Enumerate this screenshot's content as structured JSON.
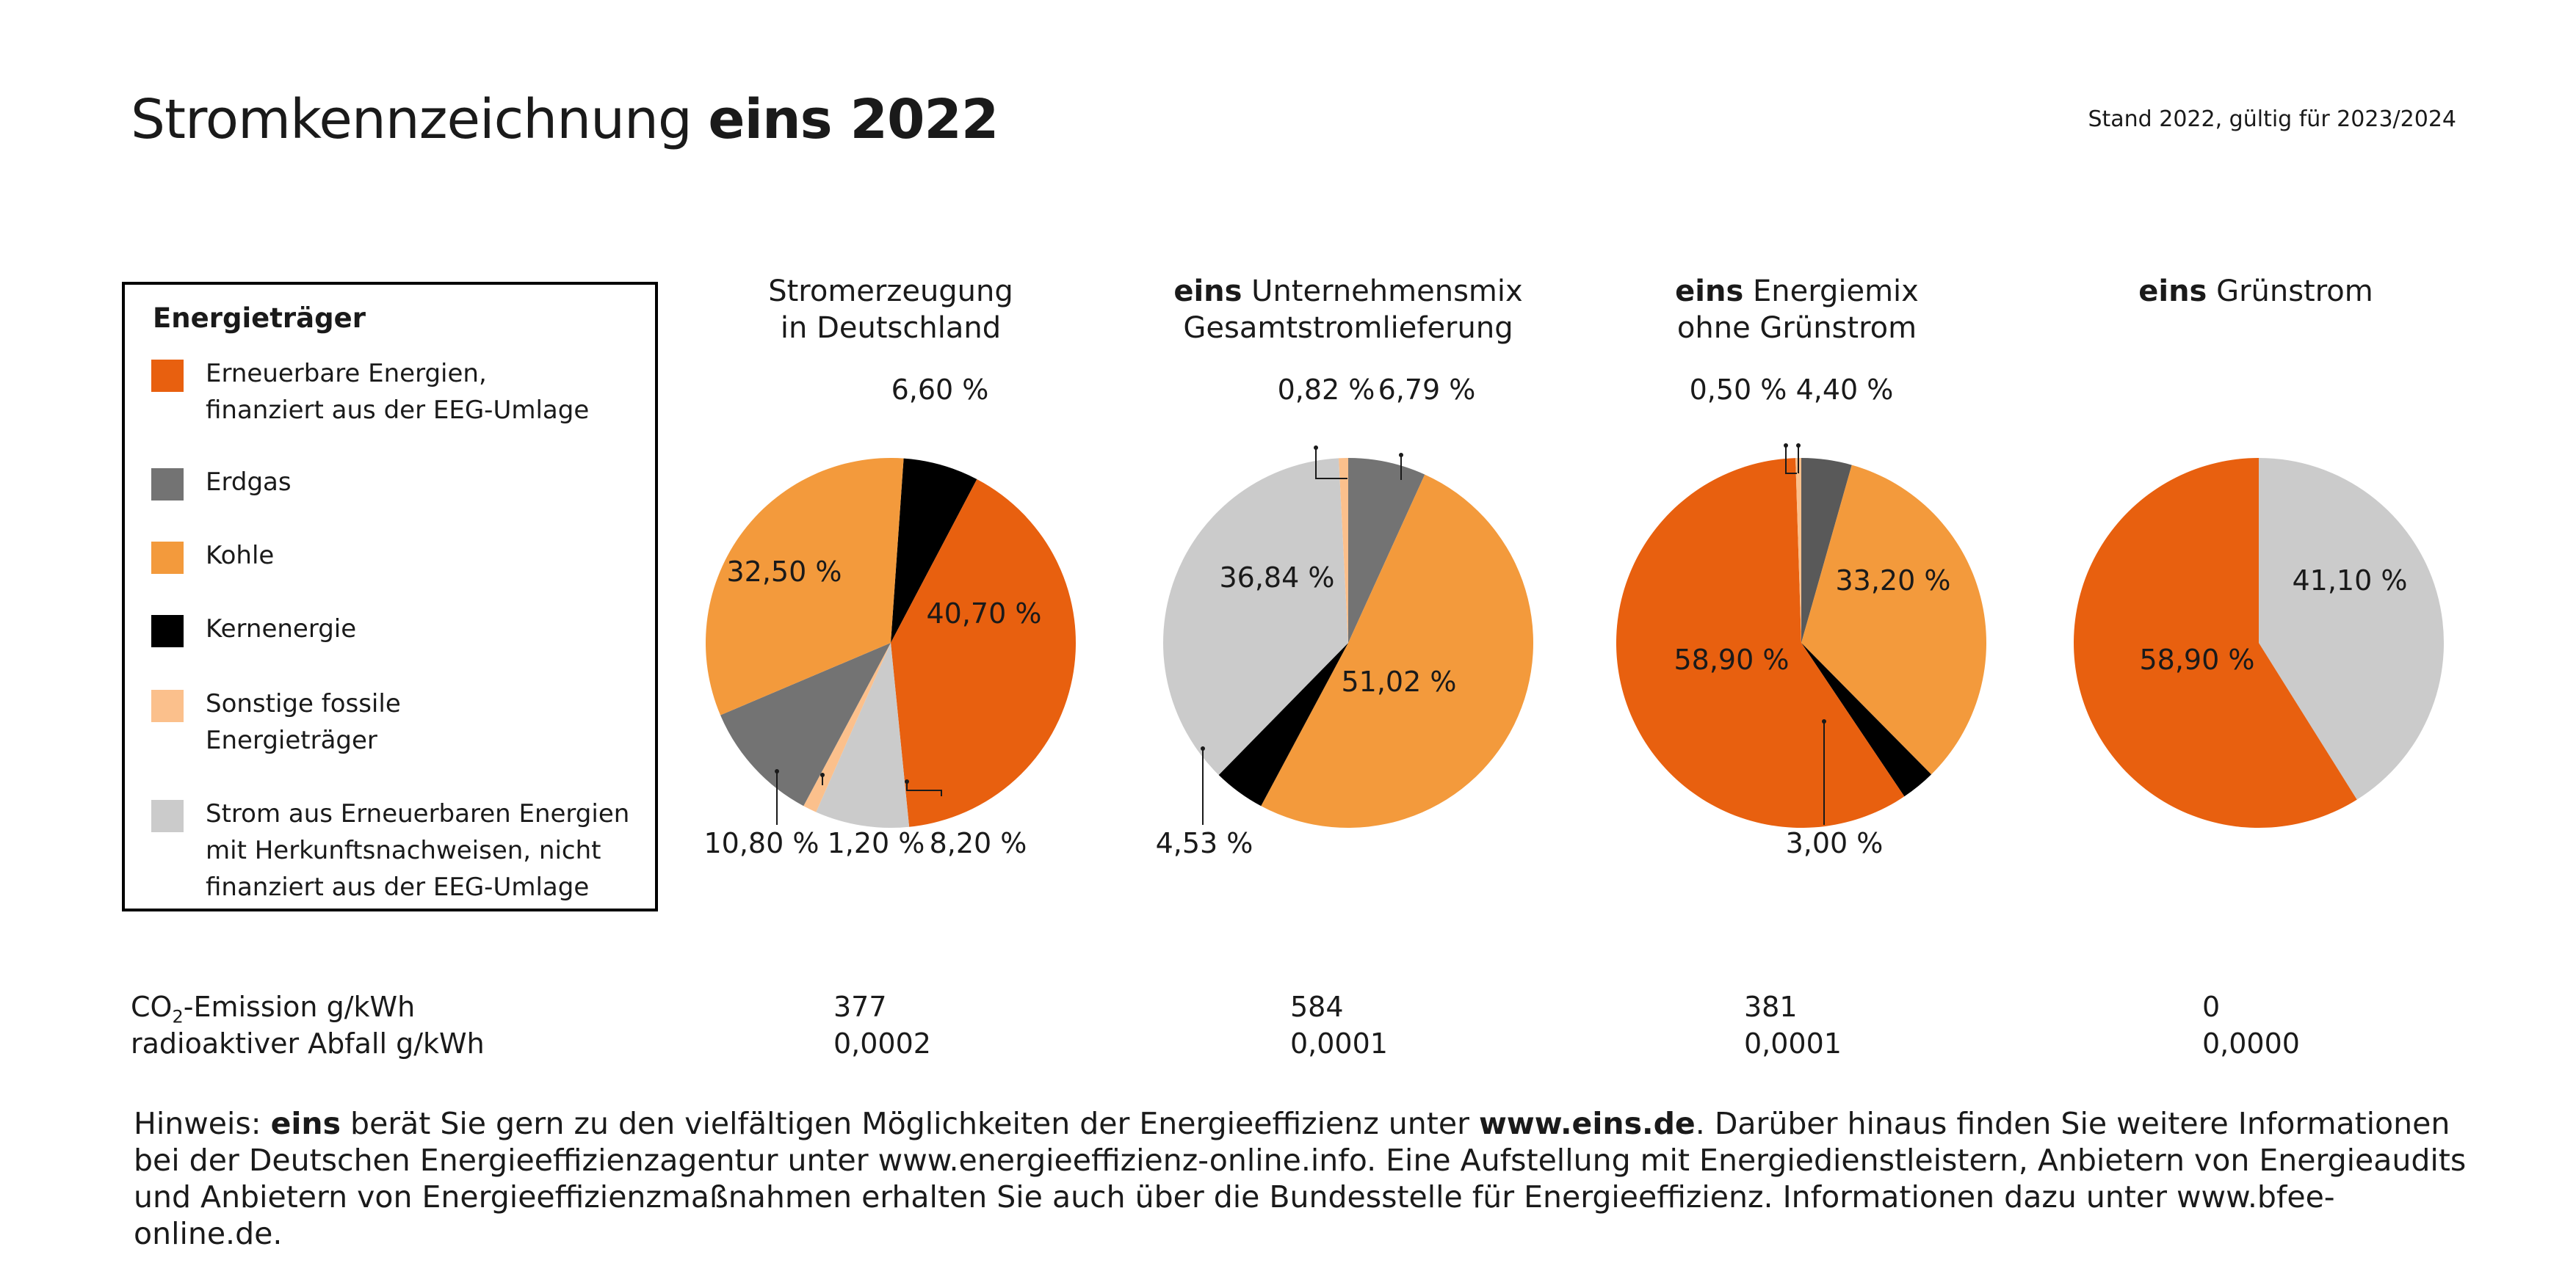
{
  "header": {
    "title_prefix": "Stromkennzeichnung ",
    "title_bold": "eins 2022",
    "stand": "Stand 2022, gültig für 2023/2024"
  },
  "legend": {
    "heading": "Energieträger",
    "items": [
      {
        "label": "Erneuerbare Energien,\nfinanziert aus der EEG-Umlage",
        "color": "#E8600F"
      },
      {
        "label": "Erdgas",
        "color": "#737373"
      },
      {
        "label": "Kohle",
        "color": "#F39A3C"
      },
      {
        "label": "Kernenergie",
        "color": "#000000"
      },
      {
        "label": "Sonstige fossile\nEnergieträger",
        "color": "#FBC08C"
      },
      {
        "label": "Strom aus Erneuerbaren Energien\nmit Herkunftsnachweisen, nicht\nfinanziert aus der EEG-Umlage",
        "color": "#CBCBCB"
      }
    ]
  },
  "pie_titles": [
    {
      "bold": "",
      "line1": "Stromerzeugung",
      "line2": "in Deutschland"
    },
    {
      "bold": "eins",
      "line1": " Unternehmensmix",
      "line2": "Gesamtstromlieferung"
    },
    {
      "bold": "eins",
      "line1": " Energiemix",
      "line2": "ohne Grünstrom"
    },
    {
      "bold": "eins",
      "line1": " Grünstrom",
      "line2": ""
    }
  ],
  "metrics": {
    "co2_label_prefix": "CO",
    "co2_label_sub": "2",
    "co2_label_suffix": "-Emission g/kWh",
    "waste_label": "radioaktiver Abfall g/kWh",
    "co2_values": [
      "377",
      "584",
      "381",
      "0"
    ],
    "waste_values": [
      "0,0002",
      "0,0001",
      "0,0001",
      "0,0000"
    ]
  },
  "note": {
    "p1": "Hinweis: ",
    "b1": "eins",
    "p2": " berät Sie gern zu den vielfältigen Möglichkeiten der Energieeffizienz unter ",
    "b2": "www.eins.de",
    "p3": ". Darüber hinaus finden Sie weitere Informationen bei der Deutschen Energieeffizienzagentur unter www.energieeffizienz-online.info. Eine Aufstellung mit Energiedienstleistern, Anbietern von Energieaudits und Anbietern von Energieeffizienzmaßnahmen erhalten Sie auch über die Bundesstelle für Energieeffizienz. Informationen dazu unter www.bfee-online.de."
  },
  "chart_data": [
    {
      "type": "pie",
      "title": "Stromerzeugung in Deutschland",
      "slices": [
        {
          "name": "Kernenergie",
          "value": 6.6,
          "label": "6,60 %",
          "color": "#000000"
        },
        {
          "name": "Erneuerbare Energien, finanziert aus der EEG-Umlage",
          "value": 40.7,
          "label": "40,70 %",
          "color": "#E8600F"
        },
        {
          "name": "Strom aus Erneuerbaren Energien mit Herkunftsnachweisen",
          "value": 8.2,
          "label": "8,20 %",
          "color": "#CBCBCB"
        },
        {
          "name": "Sonstige fossile Energieträger",
          "value": 1.2,
          "label": "1,20 %",
          "color": "#FBC08C"
        },
        {
          "name": "Erdgas",
          "value": 10.8,
          "label": "10,80 %",
          "color": "#737373"
        },
        {
          "name": "Kohle",
          "value": 32.5,
          "label": "32,50 %",
          "color": "#F39A3C"
        }
      ]
    },
    {
      "type": "pie",
      "title": "eins Unternehmensmix Gesamtstromlieferung",
      "slices": [
        {
          "name": "Erdgas",
          "value": 6.79,
          "label": "6,79 %",
          "color": "#737373"
        },
        {
          "name": "Kohle",
          "value": 51.02,
          "label": "51,02 %",
          "color": "#F39A3C"
        },
        {
          "name": "Kernenergie",
          "value": 4.53,
          "label": "4,53 %",
          "color": "#000000"
        },
        {
          "name": "Strom aus Erneuerbaren Energien mit Herkunftsnachweisen",
          "value": 36.84,
          "label": "36,84 %",
          "color": "#CBCBCB"
        },
        {
          "name": "Sonstige fossile Energieträger",
          "value": 0.82,
          "label": "0,82 %",
          "color": "#FBC08C"
        }
      ]
    },
    {
      "type": "pie",
      "title": "eins Energiemix ohne Grünstrom",
      "slices": [
        {
          "name": "Erdgas",
          "value": 4.4,
          "label": "4,40 %",
          "color": "#595959"
        },
        {
          "name": "Kohle",
          "value": 33.2,
          "label": "33,20 %",
          "color": "#F39A3C"
        },
        {
          "name": "Kernenergie",
          "value": 3.0,
          "label": "3,00 %",
          "color": "#000000"
        },
        {
          "name": "Erneuerbare Energien, finanziert aus der EEG-Umlage",
          "value": 58.9,
          "label": "58,90 %",
          "color": "#E8600F"
        },
        {
          "name": "Sonstige fossile Energieträger",
          "value": 0.5,
          "label": "0,50 %",
          "color": "#FBC08C"
        }
      ]
    },
    {
      "type": "pie",
      "title": "eins Grünstrom",
      "slices": [
        {
          "name": "Strom aus Erneuerbaren Energien mit Herkunftsnachweisen",
          "value": 41.1,
          "label": "41,10 %",
          "color": "#CBCBCB"
        },
        {
          "name": "Erneuerbare Energien, finanziert aus der EEG-Umlage",
          "value": 58.9,
          "label": "58,90 %",
          "color": "#E8600F"
        }
      ]
    }
  ]
}
